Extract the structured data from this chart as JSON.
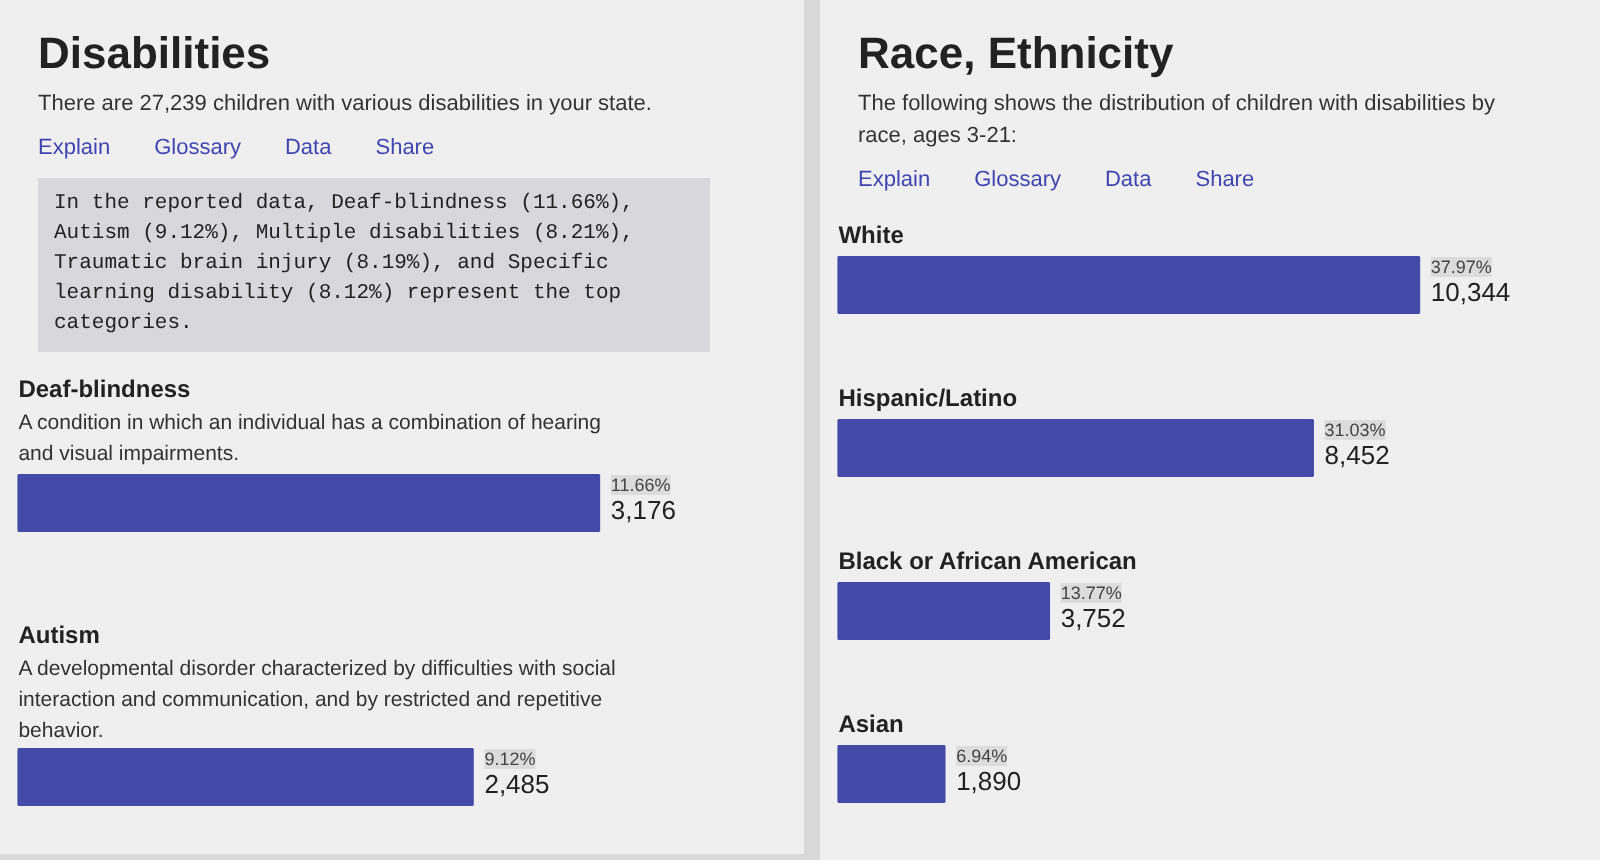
{
  "chart_data": [
    {
      "type": "bar",
      "orientation": "horizontal",
      "title": "Disabilities",
      "subtitle": "There are 27,239 children with various disabilities in your state.",
      "annotations": [
        "Explain",
        "Glossary",
        "Data",
        "Share",
        "In the reported data, Deaf-blindness (11.66%), Autism (9.12%), Multiple disabilities (8.21%), Traumatic brain injury (8.19%), and Specific learning disability (8.12%) represent the top categories.",
        "A condition in which an individual has a combination of hearing and visual impairments.",
        "A developmental disorder characterized by difficulties with social interaction and communication, and by restricted and repetitive behavior."
      ],
      "categories": [
        "Deaf-blindness",
        "Autism"
      ],
      "values": [
        3176,
        2485
      ],
      "color": "#434aa8",
      "value_labels": [
        "11.66%\n3,176",
        "9.12%\n2,485"
      ]
    },
    {
      "type": "bar",
      "orientation": "horizontal",
      "title": "Race, Ethnicity",
      "subtitle": "The following shows the distribution of children with disabilities by race, ages 3-21:",
      "annotations": [
        "Explain",
        "Glossary",
        "Data",
        "Share"
      ],
      "categories": [
        "White",
        "Hispanic/Latino",
        "Black or African American",
        "Asian"
      ],
      "values": [
        10344,
        8452,
        3752,
        1890
      ],
      "color": "#434aa8",
      "value_labels": [
        "37.97%\n10,344",
        "31.03%\n8,452",
        "13.77%\n3,752",
        "6.94%\n1,890"
      ]
    }
  ]
}
